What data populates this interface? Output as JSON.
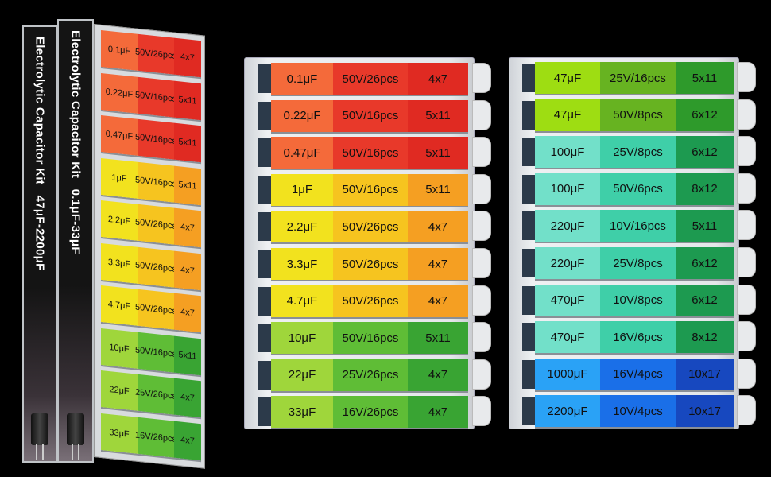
{
  "spines": [
    {
      "title": "Electrolytic Capacitor Kit",
      "range": "47μF-2200μF"
    },
    {
      "title": "Electrolytic Capacitor Kit",
      "range": "0.1μF-33μF"
    }
  ],
  "colors": {
    "red": [
      "#f46a3a",
      "#e8392a",
      "#e02a22"
    ],
    "yellow": [
      "#f2e21e",
      "#f6c41f",
      "#f59f22"
    ],
    "green": [
      "#9fd63b",
      "#5fbd36",
      "#39a433"
    ],
    "lime": [
      "#9edd12",
      "#67b321",
      "#2e9a2b"
    ],
    "teal": [
      "#72e0c9",
      "#3fcfa8",
      "#1d9a50"
    ],
    "blue": [
      "#2aa2f6",
      "#1a6fe8",
      "#1748bf"
    ]
  },
  "kit_small": [
    {
      "cap": "0.1μF",
      "rating": "50V/26pcs",
      "size": "4x7",
      "color": "red"
    },
    {
      "cap": "0.22μF",
      "rating": "50V/16pcs",
      "size": "5x11",
      "color": "red"
    },
    {
      "cap": "0.47μF",
      "rating": "50V/16pcs",
      "size": "5x11",
      "color": "red"
    },
    {
      "cap": "1μF",
      "rating": "50V/16pcs",
      "size": "5x11",
      "color": "yellow"
    },
    {
      "cap": "2.2μF",
      "rating": "50V/26pcs",
      "size": "4x7",
      "color": "yellow"
    },
    {
      "cap": "3.3μF",
      "rating": "50V/26pcs",
      "size": "4x7",
      "color": "yellow"
    },
    {
      "cap": "4.7μF",
      "rating": "50V/26pcs",
      "size": "4x7",
      "color": "yellow"
    },
    {
      "cap": "10μF",
      "rating": "50V/16pcs",
      "size": "5x11",
      "color": "green"
    },
    {
      "cap": "22μF",
      "rating": "25V/26pcs",
      "size": "4x7",
      "color": "green"
    },
    {
      "cap": "33μF",
      "rating": "16V/26pcs",
      "size": "4x7",
      "color": "green"
    }
  ],
  "kit_large": [
    {
      "cap": "47μF",
      "rating": "25V/16pcs",
      "size": "5x11",
      "color": "lime"
    },
    {
      "cap": "47μF",
      "rating": "50V/8pcs",
      "size": "6x12",
      "color": "lime"
    },
    {
      "cap": "100μF",
      "rating": "25V/8pcs",
      "size": "6x12",
      "color": "teal"
    },
    {
      "cap": "100μF",
      "rating": "50V/6pcs",
      "size": "8x12",
      "color": "teal"
    },
    {
      "cap": "220μF",
      "rating": "10V/16pcs",
      "size": "5x11",
      "color": "teal"
    },
    {
      "cap": "220μF",
      "rating": "25V/8pcs",
      "size": "6x12",
      "color": "teal"
    },
    {
      "cap": "470μF",
      "rating": "10V/8pcs",
      "size": "6x12",
      "color": "teal"
    },
    {
      "cap": "470μF",
      "rating": "16V/6pcs",
      "size": "8x12",
      "color": "teal"
    },
    {
      "cap": "1000μF",
      "rating": "16V/4pcs",
      "size": "10x17",
      "color": "blue"
    },
    {
      "cap": "2200μF",
      "rating": "10V/4pcs",
      "size": "10x17",
      "color": "blue"
    }
  ]
}
